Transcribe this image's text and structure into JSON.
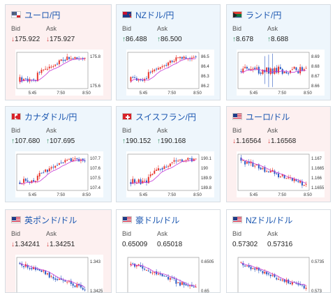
{
  "labels": {
    "bid": "Bid",
    "ask": "Ask"
  },
  "cards": [
    {
      "name": "ユーロ/円",
      "flag": "eu",
      "trend": "down",
      "bid": "175.922",
      "ask": "175.927",
      "chart": {
        "ticks": [
          "175.8",
          "175.6"
        ],
        "times": [
          "5:45",
          "7:50",
          "8:50"
        ],
        "ma": "magenta",
        "style": "rise"
      }
    },
    {
      "name": "NZドル/円",
      "flag": "nz",
      "trend": "up",
      "bid": "86.488",
      "ask": "86.500",
      "chart": {
        "ticks": [
          "86.5",
          "86.4",
          "86.3",
          "86.2"
        ],
        "times": [
          "5:45",
          "7:50",
          "8:50"
        ],
        "ma": "magenta",
        "style": "rise"
      }
    },
    {
      "name": "ランド/円",
      "flag": "za",
      "trend": "up",
      "bid": "8.678",
      "ask": "8.688",
      "chart": {
        "ticks": [
          "8.69",
          "8.68",
          "8.67",
          "8.66"
        ],
        "times": [
          "5:45",
          "7:50",
          "8:50"
        ],
        "ma": "magenta",
        "style": "spiky"
      }
    },
    {
      "name": "カナダドル/円",
      "flag": "ca",
      "trend": "up",
      "bid": "107.680",
      "ask": "107.695",
      "chart": {
        "ticks": [
          "107.7",
          "107.6",
          "107.5",
          "107.4"
        ],
        "times": [
          "5:45",
          "7:50",
          "8:50"
        ],
        "ma": "magenta",
        "style": "rise"
      }
    },
    {
      "name": "スイスフラン/円",
      "flag": "ch",
      "trend": "up",
      "bid": "190.152",
      "ask": "190.168",
      "chart": {
        "ticks": [
          "190.1",
          "190",
          "189.9",
          "189.8"
        ],
        "times": [
          "5:45",
          "7:50",
          "8:50"
        ],
        "ma": "magenta",
        "style": "rise"
      }
    },
    {
      "name": "ユーロ/ドル",
      "flag": "us",
      "trend": "down",
      "bid": "1.16564",
      "ask": "1.16568",
      "chart": {
        "ticks": [
          "1.167",
          "1.1665",
          "1.166",
          "1.1655"
        ],
        "times": [
          "5:45",
          "7:50",
          "8:50"
        ],
        "ma": "magenta",
        "style": "fall"
      }
    },
    {
      "name": "英ポンド/ドル",
      "flag": "us",
      "trend": "down",
      "bid": "1.34241",
      "ask": "1.34251",
      "chart": {
        "ticks": [
          "1.343",
          "1.3425"
        ],
        "times": [],
        "ma": "magenta",
        "style": "fall"
      }
    },
    {
      "name": "豪ドル/ドル",
      "flag": "us",
      "trend": "flat",
      "bid": "0.65009",
      "ask": "0.65018",
      "chart": {
        "ticks": [
          "0.6505",
          "0.65"
        ],
        "times": [],
        "ma": "magenta",
        "style": "fall"
      }
    },
    {
      "name": "NZドル/ドル",
      "flag": "us",
      "trend": "flat",
      "bid": "0.57302",
      "ask": "0.57316",
      "chart": {
        "ticks": [
          "0.5735",
          "0.573"
        ],
        "times": [],
        "ma": "magenta",
        "style": "fall"
      }
    }
  ],
  "colors": {
    "up_candle": "#e8342b",
    "down_candle": "#2b59c3",
    "ma_line": "#c435d4",
    "arrow_down": "#d43a3a",
    "arrow_up": "#2f8c5c"
  }
}
